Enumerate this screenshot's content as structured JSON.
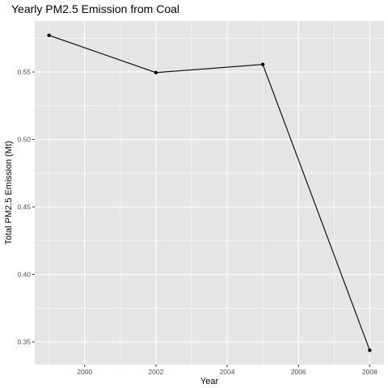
{
  "chart_data": {
    "type": "line",
    "title": "Yearly PM2.5 Emission from Coal",
    "xlabel": "Year",
    "ylabel": "Total PM2.5 Emission (Mt)",
    "x": [
      1999,
      2002,
      2005,
      2008
    ],
    "series": [
      {
        "values": [
          0.5772,
          0.5496,
          0.5556,
          0.3438
        ]
      }
    ],
    "xlim": [
      1998.6,
      2008.4
    ],
    "ylim": [
      0.3332,
      0.5878
    ],
    "x_ticks": [
      2000,
      2002,
      2004,
      2006,
      2008
    ],
    "x_tick_labels": [
      "2000",
      "2002",
      "2004",
      "2006",
      "2008"
    ],
    "y_ticks": [
      0.35,
      0.4,
      0.45,
      0.5,
      0.55
    ],
    "y_tick_labels": [
      "0.35",
      "0.40",
      "0.45",
      "0.50",
      "0.55"
    ],
    "grid": true,
    "colors": {
      "panel_background": "#e5e5e5",
      "grid_major": "#ffffff",
      "line": "#000000",
      "point": "#000000"
    }
  }
}
